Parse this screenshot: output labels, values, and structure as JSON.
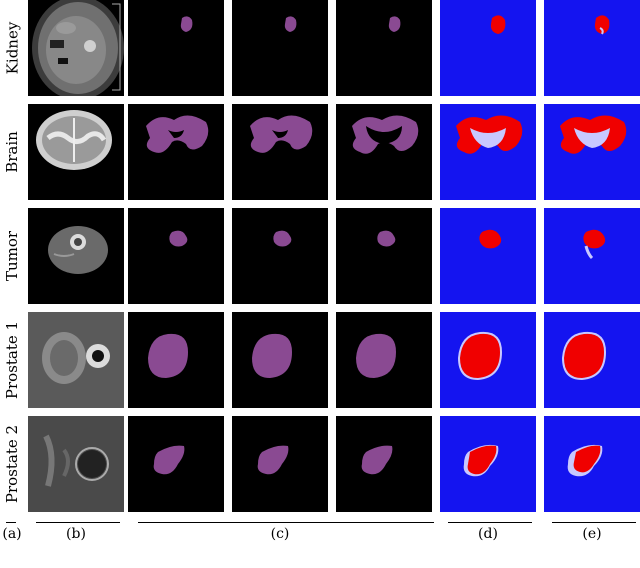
{
  "rows": [
    {
      "label": "Kidney"
    },
    {
      "label": "Brain"
    },
    {
      "label": "Tumor"
    },
    {
      "label": "Prostate 1"
    },
    {
      "label": "Prostate 2"
    }
  ],
  "columns": {
    "a": "(a)",
    "b": "(b)",
    "c": "(c)",
    "d": "(d)",
    "e": "(e)"
  },
  "colors": {
    "segmentation": "#8a4a92",
    "uncertainty_background": "#1414f0",
    "uncertainty_high": "#f00000",
    "uncertainty_edge": "#c8c8ff"
  }
}
